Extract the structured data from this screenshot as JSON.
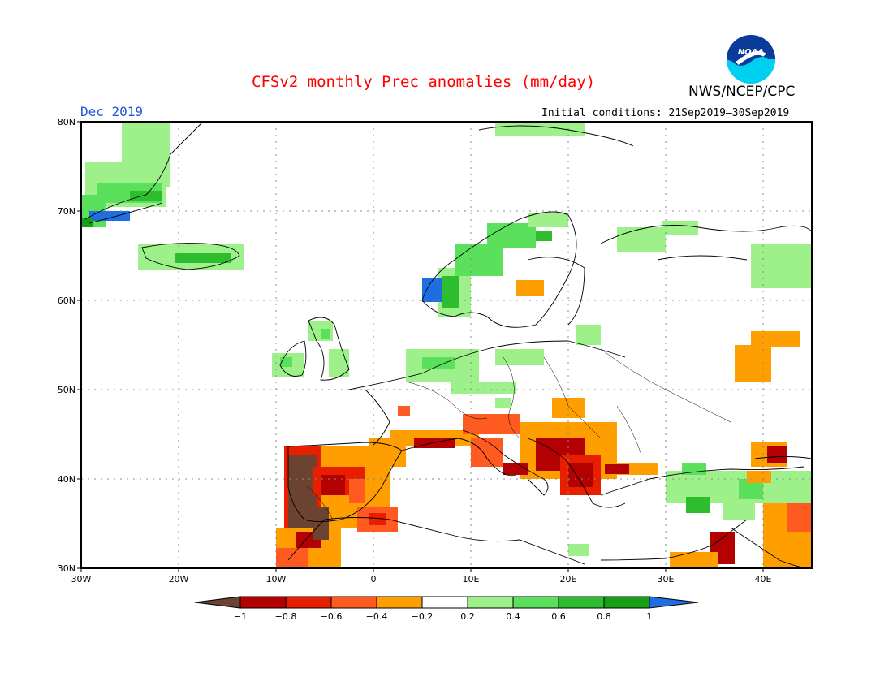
{
  "header": {
    "title": "CFSv2 monthly Prec anomalies (mm/day)",
    "month": "Dec 2019",
    "initial_conditions": "Initial conditions: 21Sep2019–30Sep2019",
    "agency": "NWS/NCEP/CPC",
    "logo_text": "NOAA"
  },
  "axes": {
    "lat_labels": [
      "80N",
      "70N",
      "60N",
      "50N",
      "40N",
      "30N"
    ],
    "lon_labels": [
      "30W",
      "20W",
      "10W",
      "0",
      "10E",
      "20E",
      "30E",
      "40E"
    ]
  },
  "colorbar": {
    "labels": [
      "−1",
      "−0.8",
      "−0.6",
      "−0.4",
      "−0.2",
      "0.2",
      "0.4",
      "0.6",
      "0.8",
      "1"
    ],
    "colors": [
      "#6b4330",
      "#b30000",
      "#e81e00",
      "#ff5a1f",
      "#ff9e00",
      "#ffffff",
      "#9ef08a",
      "#5ae05a",
      "#2ebd2e",
      "#16a016",
      "#1e6ee0"
    ]
  },
  "colors": {
    "dry_extreme": "#6b4330",
    "dry_strong": "#b30000",
    "dry_moderate": "#e81e00",
    "dry_light": "#ff5a1f",
    "dry_weak": "#ff9e00",
    "wet_weak": "#9ef08a",
    "wet_light": "#5ae05a",
    "wet_moderate": "#2ebd2e",
    "wet_strong": "#16a016",
    "wet_extreme": "#1e6ee0",
    "title": "#ff0000",
    "month": "#2255dd"
  }
}
